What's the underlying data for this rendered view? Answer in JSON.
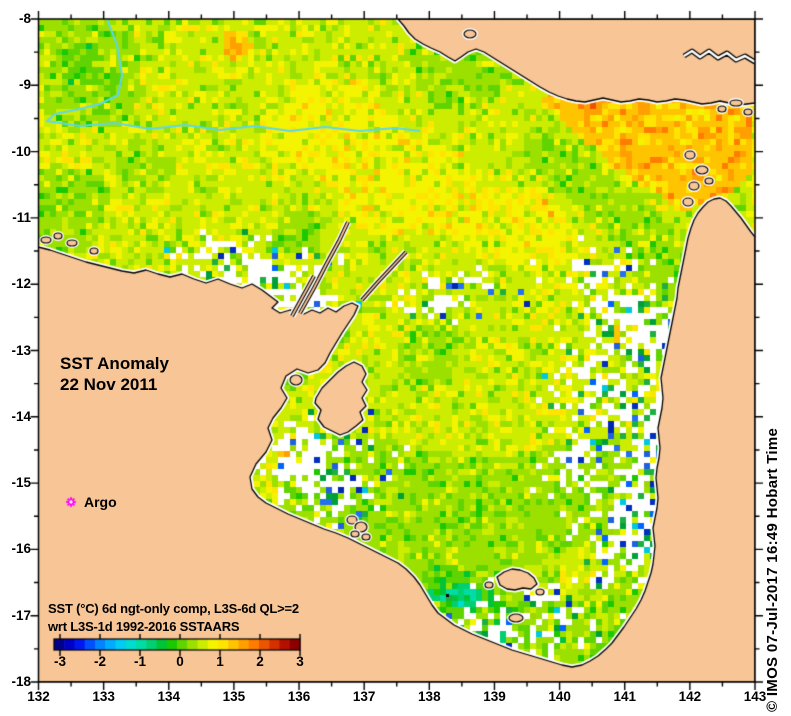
{
  "map_titles": {
    "title": "SST Anomaly",
    "date": "22 Nov 2011"
  },
  "argo_marker": {
    "label": "Argo",
    "color": "#ff00ff"
  },
  "caption": {
    "line1": "SST (°C) 6d ngt-only comp, L3S-6d QL>=2",
    "line2": "wrt L3S-1d 1992-2016 SSTAARS"
  },
  "credit_vertical": "© IMOS 07-Jul-2017 16:49 Hobart Time",
  "axes": {
    "lon_tick_labels": [
      "132",
      "133",
      "134",
      "135",
      "136",
      "137",
      "138",
      "139",
      "140",
      "141",
      "142",
      "143"
    ],
    "lat_tick_labels": [
      "-8",
      "-9",
      "-10",
      "-11",
      "-12",
      "-13",
      "-14",
      "-15",
      "-16",
      "-17",
      "-18"
    ]
  },
  "colorbar": {
    "tick_labels": [
      "-3",
      "-2",
      "-1",
      "0",
      "1",
      "2",
      "3"
    ],
    "min": -3,
    "max": 3,
    "palette": [
      "#00008c",
      "#0000c8",
      "#0018f0",
      "#0050ff",
      "#0084ff",
      "#00acff",
      "#00ccf4",
      "#00dcd0",
      "#00dca4",
      "#00d070",
      "#00c438",
      "#1cc800",
      "#60d400",
      "#9ce000",
      "#ccec00",
      "#f4f400",
      "#ffe400",
      "#ffc400",
      "#ffa000",
      "#ff7c00",
      "#ec5400",
      "#d43000",
      "#b41000",
      "#8c0000"
    ]
  },
  "map_colors": {
    "land": "#f7c596",
    "coastline": "#000000",
    "contour_line": "#5cd8ec",
    "no_data": "#ffffff"
  }
}
